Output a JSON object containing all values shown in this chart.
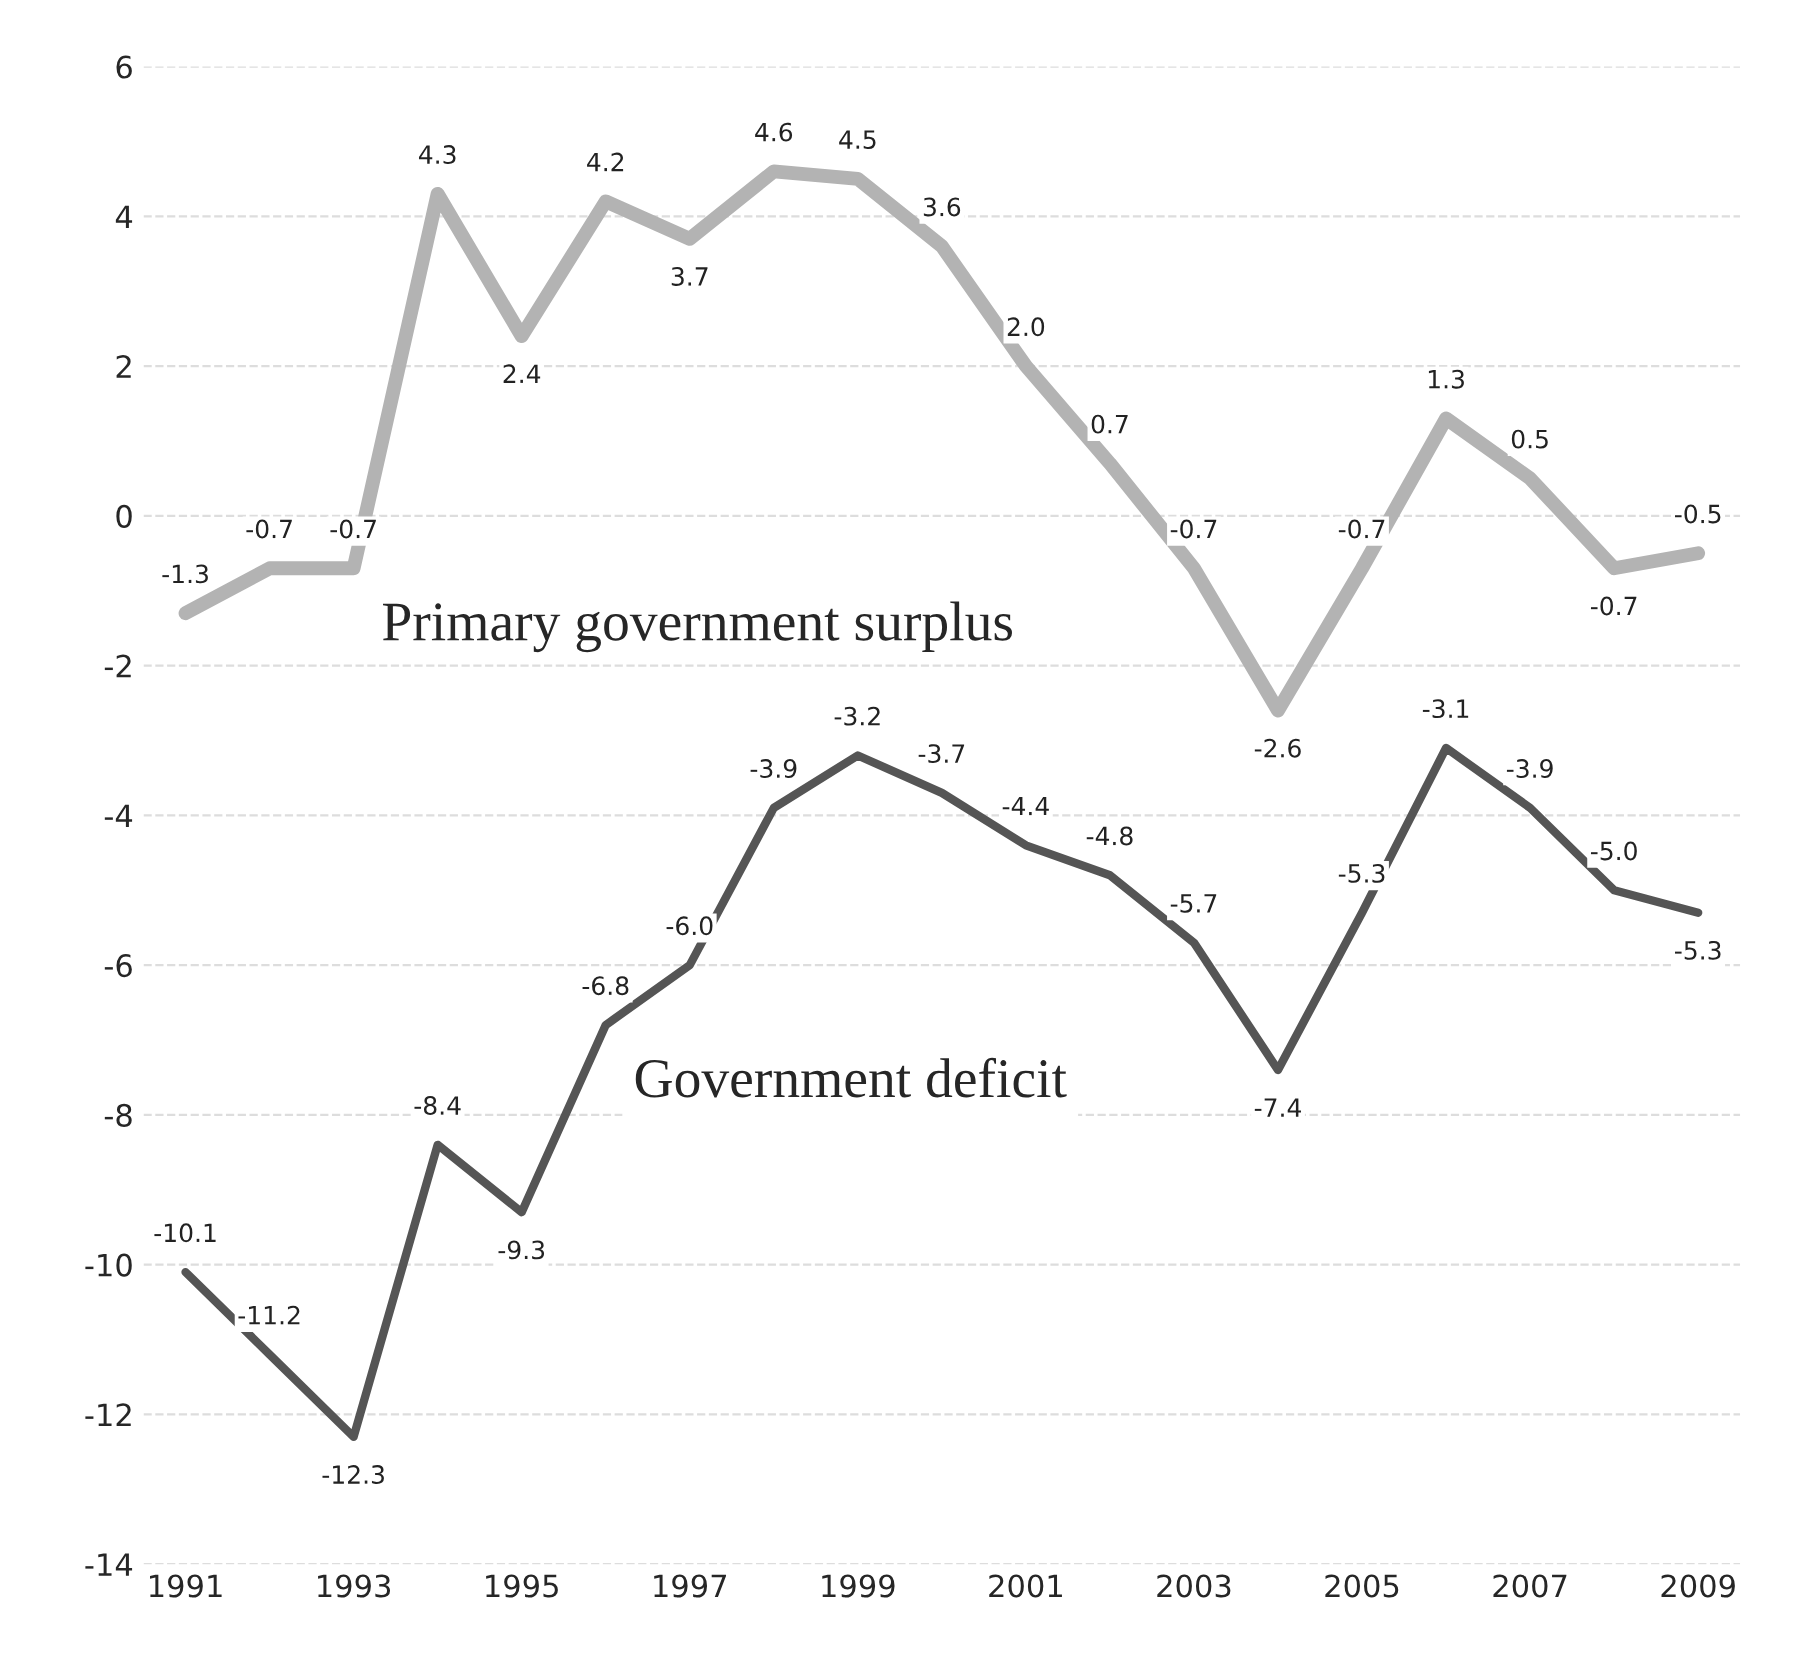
{
  "chart_data": {
    "type": "line",
    "x": [
      1991,
      1992,
      1993,
      1994,
      1995,
      1996,
      1997,
      1998,
      1999,
      2000,
      2001,
      2002,
      2003,
      2004,
      2005,
      2006,
      2007,
      2008,
      2009
    ],
    "series": [
      {
        "color": "#b3b3b3",
        "values": [
          -1.3,
          -0.7,
          -0.7,
          4.3,
          2.4,
          4.2,
          3.7,
          4.6,
          4.5,
          3.6,
          2.0,
          0.7,
          -0.7,
          -2.6,
          -0.7,
          1.3,
          0.5,
          -0.7,
          -0.5
        ],
        "value_labels": [
          "-1.3",
          "-0.7",
          "-0.7",
          "4.3",
          "2.4",
          "4.2",
          "3.7",
          "4.6",
          "4.5",
          "3.6",
          "2.0",
          "0.7",
          "-0.7",
          "-2.6",
          "-0.7",
          "1.3",
          "0.5",
          "-0.7",
          "-0.5"
        ]
      },
      {
        "color": "#555555",
        "values": [
          -10.1,
          -11.2,
          -12.3,
          -8.4,
          -9.3,
          -6.8,
          -6.0,
          -3.9,
          -3.2,
          -3.7,
          -4.4,
          -4.8,
          -5.7,
          -7.4,
          -5.3,
          -3.1,
          -3.9,
          -5.0,
          -5.3
        ],
        "value_labels": [
          "-10.1",
          "-11.2",
          "-12.3",
          "-8.4",
          "-9.3",
          "-6.8",
          "-6.0",
          "-3.9",
          "-3.2",
          "-3.7",
          "-4.4",
          "-4.8",
          "-5.7",
          "-7.4",
          "-5.3",
          "-3.1",
          "-3.9",
          "-5.0",
          "-5.3"
        ]
      }
    ],
    "annotations": [
      {
        "text": "Primary government surplus",
        "x": 1993,
        "y": -0.7
      },
      {
        "text": "Government deficit",
        "x": 1996,
        "y": -6.8
      }
    ],
    "xlim": [
      1990.5,
      2009.5
    ],
    "xticks": [
      1991,
      1993,
      1995,
      1997,
      1999,
      2001,
      2003,
      2005,
      2007,
      2009
    ],
    "ylim": [
      -14,
      6
    ],
    "yticks": [
      -14,
      -12,
      -10,
      -8,
      -6,
      -4,
      -2,
      0,
      2,
      4,
      6
    ],
    "grid": "y",
    "marker": "none",
    "line_style": "solid"
  }
}
